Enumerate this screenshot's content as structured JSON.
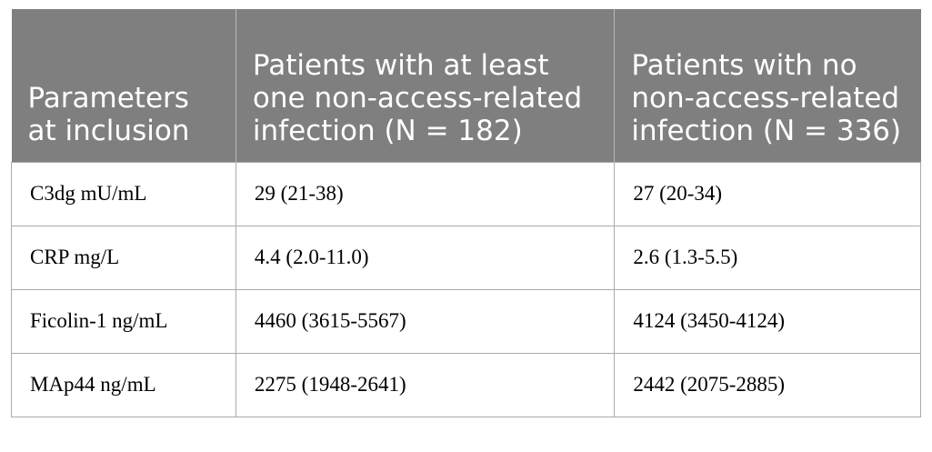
{
  "table": {
    "header": [
      "Parameters at inclusion",
      "Patients with at least one non-access-related infection (N = 182)",
      "Patients with no non-access-related infection (N = 336)"
    ],
    "rows": [
      [
        "C3dg mU/mL",
        "29 (21-38)",
        "27 (20-34)"
      ],
      [
        "CRP mg/L",
        "4.4 (2.0-11.0)",
        "2.6 (1.3-5.5)"
      ],
      [
        "Ficolin-1 ng/mL",
        "4460 (3615-5567)",
        "4124 (3450-4124)"
      ],
      [
        "MAp44 ng/mL",
        "2275 (1948-2641)",
        "2442 (2075-2885)"
      ]
    ]
  }
}
